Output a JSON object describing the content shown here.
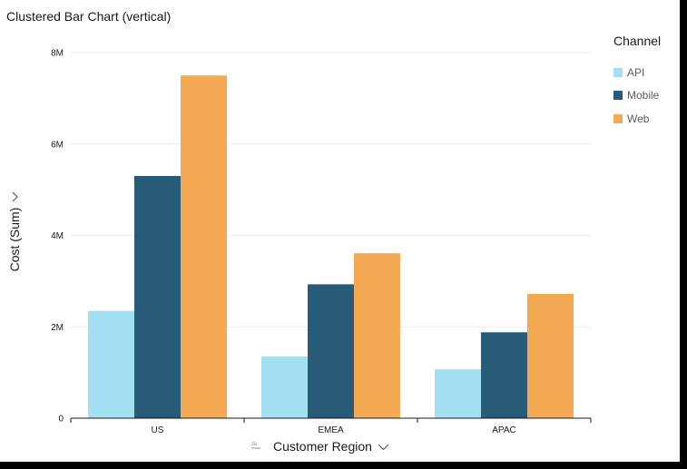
{
  "chart_data": {
    "type": "bar",
    "title": "Clustered Bar Chart (vertical)",
    "xlabel": "Customer Region",
    "ylabel": "Cost (Sum)",
    "legend_title": "Channel",
    "legend_position": "right",
    "grid": true,
    "categories": [
      "US",
      "EMEA",
      "APAC"
    ],
    "ylim": [
      0,
      8000000
    ],
    "yticks": [
      0,
      2000000,
      4000000,
      6000000,
      8000000
    ],
    "ytick_labels": [
      "0",
      "2M",
      "4M",
      "6M",
      "8M"
    ],
    "series": [
      {
        "name": "API",
        "color": "#a3dff2",
        "values": [
          2350000,
          1350000,
          1070000
        ]
      },
      {
        "name": "Mobile",
        "color": "#285b77",
        "values": [
          5300000,
          2930000,
          1880000
        ]
      },
      {
        "name": "Web",
        "color": "#f4aa55",
        "values": [
          7500000,
          3610000,
          2720000
        ]
      }
    ]
  },
  "icons": {
    "axis_chevron": "chevron-down-icon",
    "sort": "sort-za-icon"
  },
  "labels": {
    "chevron": "∨",
    "sort_glyph": "z↓a"
  }
}
